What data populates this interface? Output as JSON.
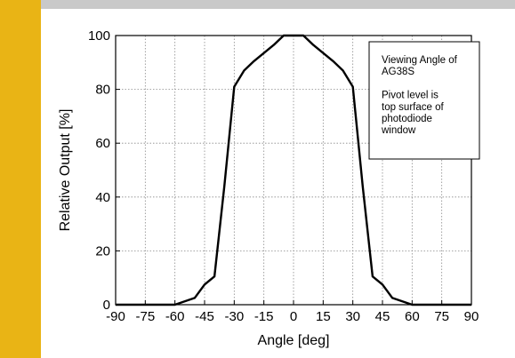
{
  "colors": {
    "accent_bar": "#e9b415",
    "top_bar": "#c9c9c9",
    "series_line": "#000000",
    "grid": "#8a8a8a"
  },
  "chart_data": {
    "type": "line",
    "title": "",
    "xlabel": "Angle [deg]",
    "ylabel": "Relative Output [%]",
    "xlim": [
      -90,
      90
    ],
    "ylim": [
      0,
      100
    ],
    "x_ticks": [
      -90,
      -75,
      -60,
      -45,
      -30,
      -15,
      0,
      15,
      30,
      45,
      60,
      75,
      90
    ],
    "y_ticks": [
      0,
      20,
      40,
      60,
      80,
      100
    ],
    "grid": true,
    "legend": "none",
    "annotation": {
      "position": "top-right",
      "lines": [
        "Viewing Angle of",
        "AG38S",
        "",
        "Pivot level is",
        "top surface of",
        "photodiode",
        "window"
      ]
    },
    "series": [
      {
        "x": [
          -90,
          -60,
          -50,
          -45,
          -40,
          -35,
          -30,
          -25,
          -20,
          -15,
          -10,
          -5,
          0,
          5,
          10,
          15,
          20,
          25,
          30,
          35,
          40,
          45,
          50,
          60,
          90
        ],
        "y": [
          0,
          0,
          2.5,
          7.5,
          10.5,
          44,
          81,
          87,
          90.5,
          93.5,
          96.5,
          100,
          100,
          100,
          96.5,
          93.5,
          90.5,
          87,
          81,
          44,
          10.5,
          7.5,
          2.5,
          0,
          0
        ]
      }
    ]
  }
}
